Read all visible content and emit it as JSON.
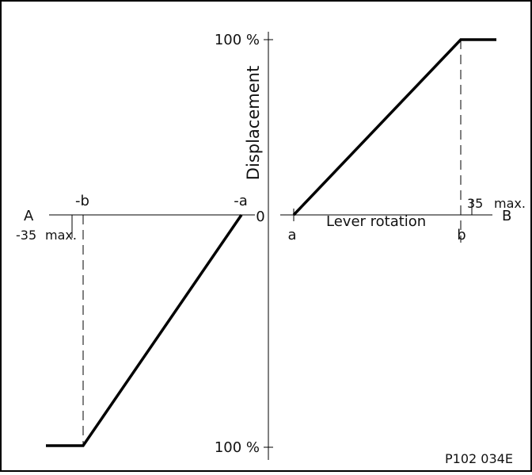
{
  "figure_id": "P102 034E",
  "axes": {
    "x_left_label": "A",
    "x_right_label": "B",
    "origin_label": "0",
    "y_axis_title": "Displacement",
    "y_top_label": "100 %",
    "y_bottom_label": "100 %",
    "x_axis_title": "Lever rotation"
  },
  "markers": {
    "neg_b": "-b",
    "neg_a": "-a",
    "pos_a": "a",
    "pos_b": "b",
    "pos_max_value": "35",
    "pos_max_unit": "max.",
    "neg_max_value": "-35",
    "neg_max_unit": "max."
  },
  "colors": {
    "line": "#000000",
    "frame": "#000000",
    "background": "#ffffff"
  }
}
